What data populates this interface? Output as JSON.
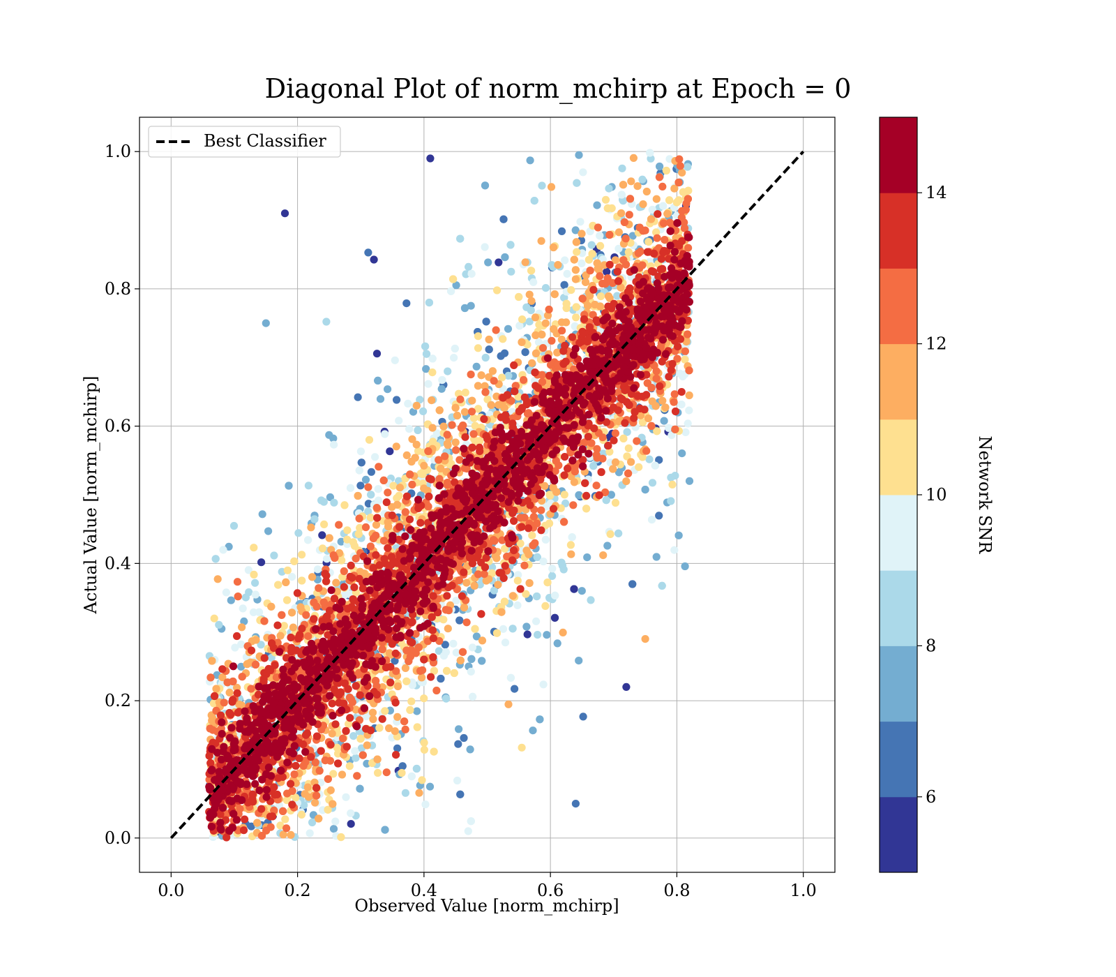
{
  "chart_data": {
    "type": "scatter",
    "title": "Diagonal Plot of norm_mchirp at Epoch = 0",
    "xlabel": "Observed Value [norm_mchirp]",
    "ylabel": "Actual Value [norm_mchirp]",
    "xlim": [
      -0.05,
      1.05
    ],
    "ylim": [
      -0.05,
      1.05
    ],
    "x_ticks": [
      "0.0",
      "0.2",
      "0.4",
      "0.6",
      "0.8",
      "1.0"
    ],
    "y_ticks": [
      "0.0",
      "0.2",
      "0.4",
      "0.6",
      "0.8",
      "1.0"
    ],
    "grid": true,
    "legend": {
      "position": "top-left",
      "entries": [
        "Best Classifier"
      ]
    },
    "reference_line": {
      "name": "Best Classifier",
      "x": [
        0,
        1
      ],
      "y": [
        0,
        1
      ],
      "style": "dashed",
      "color": "#000000"
    },
    "colorbar": {
      "label": "Network SNR",
      "range": [
        5,
        15
      ],
      "ticks": [
        "6",
        "8",
        "10",
        "12",
        "14"
      ],
      "colors": [
        "#313695",
        "#4575b4",
        "#74add1",
        "#abd9e9",
        "#e0f3f8",
        "#fee090",
        "#fdae61",
        "#f46d43",
        "#d73027",
        "#a50026"
      ]
    },
    "series": [
      {
        "distribution": "points clustered along the diagonal; higher SNR (dark red) tightly on the diagonal, lower SNR (blue) scattered above and below",
        "x_range": [
          0.05,
          0.83
        ],
        "y_range": [
          0.0,
          1.0
        ],
        "sample_points": [
          {
            "x": 0.1,
            "y": 0.1,
            "snr": 14.8
          },
          {
            "x": 0.2,
            "y": 0.22,
            "snr": 14.5
          },
          {
            "x": 0.3,
            "y": 0.3,
            "snr": 14.9
          },
          {
            "x": 0.4,
            "y": 0.42,
            "snr": 14.7
          },
          {
            "x": 0.5,
            "y": 0.5,
            "snr": 14.6
          },
          {
            "x": 0.6,
            "y": 0.58,
            "snr": 14.2
          },
          {
            "x": 0.7,
            "y": 0.72,
            "snr": 14.9
          },
          {
            "x": 0.8,
            "y": 0.82,
            "snr": 14.4
          },
          {
            "x": 0.18,
            "y": 0.91,
            "snr": 5.3
          },
          {
            "x": 0.41,
            "y": 0.99,
            "snr": 5.5
          },
          {
            "x": 0.72,
            "y": 0.22,
            "snr": 5.4
          },
          {
            "x": 0.75,
            "y": 0.29,
            "snr": 11.5
          },
          {
            "x": 0.82,
            "y": 0.52,
            "snr": 7.8
          },
          {
            "x": 0.64,
            "y": 0.05,
            "snr": 6.6
          },
          {
            "x": 0.15,
            "y": 0.75,
            "snr": 7.2
          },
          {
            "x": 0.47,
            "y": 0.01,
            "snr": 9.5
          }
        ]
      }
    ]
  }
}
